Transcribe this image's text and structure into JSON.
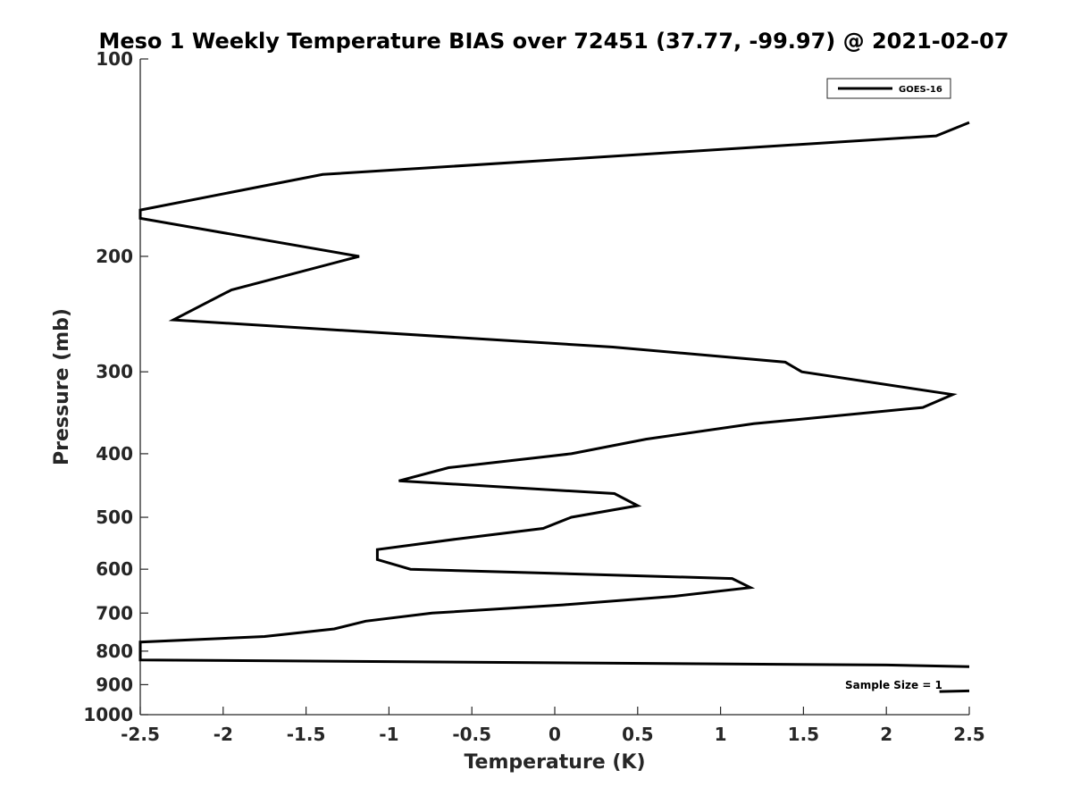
{
  "chart_data": {
    "type": "line",
    "title": "Meso 1 Weekly Temperature BIAS over 72451 (37.77, -99.97) @ 2021-02-07",
    "xlabel": "Temperature (K)",
    "ylabel": "Pressure (mb)",
    "xlim": [
      -2.5,
      2.5
    ],
    "ylim": [
      100,
      1000
    ],
    "y_scale": "log",
    "y_reversed": true,
    "grid": false,
    "legend_position": "top-right",
    "x_ticks": [
      "-2.5",
      "-2",
      "-1.5",
      "-1",
      "-0.5",
      "0",
      "0.5",
      "1",
      "1.5",
      "2",
      "2.5"
    ],
    "y_ticks": [
      "100",
      "200",
      "300",
      "400",
      "500",
      "600",
      "700",
      "800",
      "900",
      "1000"
    ],
    "series": [
      {
        "name": "GOES-16",
        "color": "#000000",
        "points": [
          [
            2.5,
            125
          ],
          [
            2.3,
            131
          ],
          [
            -1.4,
            150
          ],
          [
            -2.5,
            170
          ],
          [
            -2.5,
            175
          ],
          [
            -1.18,
            200
          ],
          [
            -1.95,
            225
          ],
          [
            -2.3,
            250
          ],
          [
            0.35,
            275
          ],
          [
            1.39,
            290
          ],
          [
            1.49,
            300
          ],
          [
            2.4,
            325
          ],
          [
            2.22,
            340
          ],
          [
            1.2,
            360
          ],
          [
            0.55,
            380
          ],
          [
            0.1,
            400
          ],
          [
            -0.64,
            420
          ],
          [
            -0.94,
            440
          ],
          [
            0.36,
            460
          ],
          [
            0.5,
            480
          ],
          [
            0.1,
            500
          ],
          [
            -0.07,
            520
          ],
          [
            -0.6,
            540
          ],
          [
            -1.07,
            560
          ],
          [
            -1.07,
            580
          ],
          [
            -0.87,
            600
          ],
          [
            1.07,
            620
          ],
          [
            1.18,
            640
          ],
          [
            0.72,
            660
          ],
          [
            0.05,
            680
          ],
          [
            -0.74,
            700
          ],
          [
            -1.14,
            720
          ],
          [
            -1.33,
            740
          ],
          [
            -1.75,
            760
          ],
          [
            -2.5,
            775
          ],
          [
            -2.5,
            825
          ],
          [
            2.0,
            840
          ],
          [
            2.5,
            845
          ]
        ]
      }
    ],
    "annotation": {
      "text": "Sample Size = 1",
      "points": [
        [
          2.32,
          922
        ],
        [
          2.5,
          920
        ]
      ]
    }
  }
}
